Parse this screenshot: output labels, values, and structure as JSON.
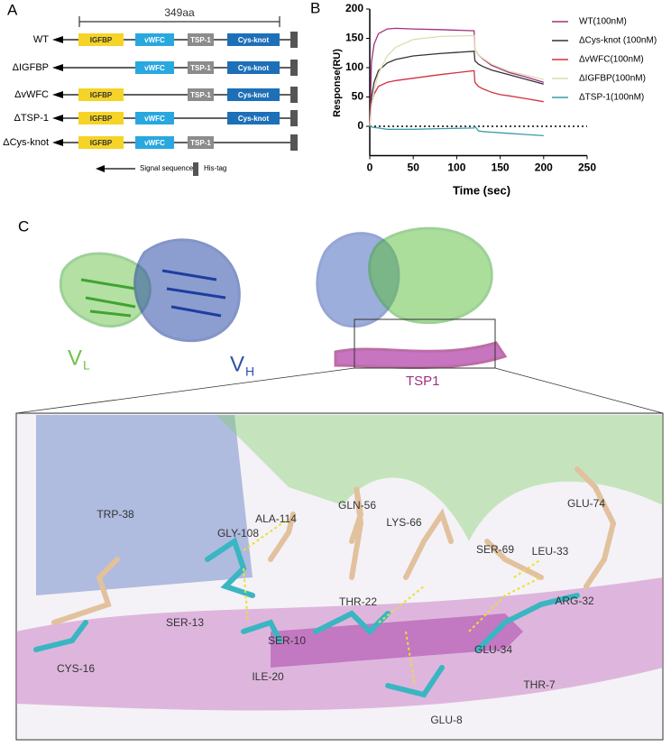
{
  "panels": {
    "a": "A",
    "b": "B",
    "c": "C"
  },
  "domain_diagram": {
    "length_label": "349aa",
    "domains": [
      {
        "name": "IGFBP",
        "color": "#f5d327",
        "text_color": "#333333"
      },
      {
        "name": "vWFC",
        "color": "#29a8e0",
        "text_color": "#ffffff"
      },
      {
        "name": "TSP-1",
        "color": "#8c8c8c",
        "text_color": "#ffffff"
      },
      {
        "name": "Cys-knot",
        "color": "#1d6fb8",
        "text_color": "#ffffff"
      }
    ],
    "rows": [
      {
        "label": "WT",
        "present": [
          true,
          true,
          true,
          true
        ]
      },
      {
        "label": "ΔIGFBP",
        "present": [
          false,
          true,
          true,
          true
        ]
      },
      {
        "label": "ΔvWFC",
        "present": [
          true,
          false,
          true,
          true
        ]
      },
      {
        "label": "ΔTSP-1",
        "present": [
          true,
          true,
          false,
          true
        ]
      },
      {
        "label": "ΔCys-knot",
        "present": [
          true,
          true,
          true,
          false
        ]
      }
    ],
    "legend": {
      "signal": "Signal sequence",
      "his": "His-tag"
    }
  },
  "chart_data": {
    "type": "line",
    "ylabel": "Response(RU)",
    "xlabel": "Time  (sec)",
    "xlim": [
      0,
      250
    ],
    "ylim": [
      -50,
      200
    ],
    "xticks": [
      0,
      50,
      100,
      150,
      200,
      250
    ],
    "yticks": [
      0,
      50,
      100,
      150,
      200
    ],
    "hline": 0,
    "x": [
      0,
      2,
      5,
      10,
      20,
      30,
      50,
      80,
      120,
      121,
      125,
      130,
      140,
      150,
      160,
      180,
      200
    ],
    "series": [
      {
        "name": "WT(100nM)",
        "color": "#a0307f",
        "values": [
          0,
          110,
          140,
          158,
          166,
          167,
          166,
          165,
          163,
          130,
          122,
          115,
          104,
          98,
          92,
          84,
          75
        ]
      },
      {
        "name": "ΔCys-knot  (100nM)",
        "color": "#333333",
        "values": [
          0,
          50,
          75,
          95,
          108,
          114,
          120,
          124,
          128,
          112,
          106,
          102,
          96,
          92,
          88,
          80,
          72
        ]
      },
      {
        "name": "ΔvWFC(100nM)",
        "color": "#d0313f",
        "values": [
          0,
          40,
          55,
          68,
          75,
          78,
          82,
          88,
          95,
          75,
          68,
          64,
          58,
          54,
          52,
          47,
          42
        ]
      },
      {
        "name": "ΔIGFBP(100nM)",
        "color": "#e0dbb5",
        "values": [
          0,
          35,
          60,
          90,
          120,
          135,
          148,
          153,
          155,
          130,
          122,
          116,
          106,
          100,
          94,
          87,
          80
        ]
      },
      {
        "name": "ΔTSP-1(100nM)",
        "color": "#3b9aa6",
        "values": [
          0,
          -1,
          -2,
          -3,
          -5,
          -5,
          -5,
          -4,
          -3,
          0,
          -8,
          -9,
          -10,
          -11,
          -12,
          -14,
          -16
        ]
      }
    ]
  },
  "structure": {
    "vl": "V",
    "vl_sub": "L",
    "vh": "V",
    "vh_sub": "H",
    "tsp1": "TSP1",
    "residues": [
      "TRP-38",
      "CYS-16",
      "SER-13",
      "GLY-108",
      "ALA-114",
      "ILE-20",
      "SER-10",
      "GLN-56",
      "THR-22",
      "LYS-66",
      "SER-69",
      "GLU-8",
      "THR-7",
      "GLU-34",
      "LEU-33",
      "ARG-32",
      "GLU-74"
    ]
  }
}
